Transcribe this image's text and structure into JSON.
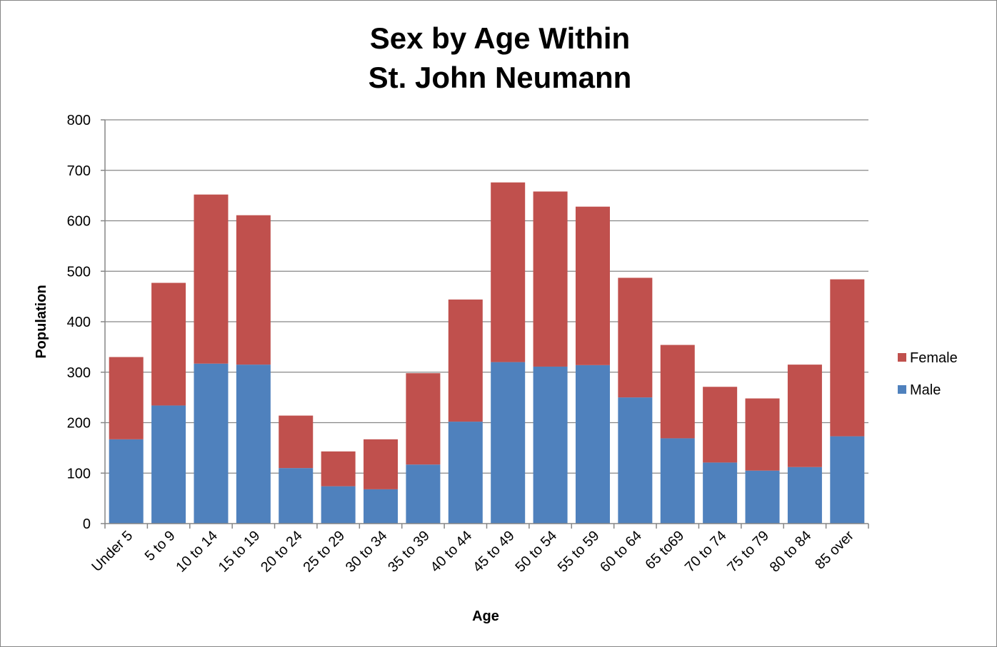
{
  "chart_data": {
    "type": "bar",
    "stacked": true,
    "title_lines": [
      "Sex by Age Within",
      "St. John Neumann"
    ],
    "xlabel": "Age",
    "ylabel": "Population",
    "ylim": [
      0,
      800
    ],
    "yticks": [
      0,
      100,
      200,
      300,
      400,
      500,
      600,
      700,
      800
    ],
    "grid": true,
    "legend_position": "right",
    "categories": [
      "Under 5",
      "5 to 9",
      "10 to 14",
      "15 to 19",
      "20 to 24",
      "25 to 29",
      "30 to 34",
      "35 to 39",
      "40 to 44",
      "45 to 49",
      "50 to 54",
      "55 to 59",
      "60 to 64",
      "65 to69",
      "70 to 74",
      "75 to 79",
      "80 to 84",
      "85 over"
    ],
    "series": [
      {
        "name": "Male",
        "color": "#4F81BD",
        "values": [
          167,
          234,
          317,
          315,
          110,
          74,
          68,
          117,
          202,
          320,
          311,
          314,
          250,
          169,
          121,
          105,
          112,
          173
        ]
      },
      {
        "name": "Female",
        "color": "#C0504D",
        "values": [
          163,
          243,
          335,
          296,
          104,
          69,
          99,
          181,
          242,
          356,
          347,
          314,
          237,
          185,
          150,
          143,
          203,
          311
        ]
      }
    ],
    "legend_order": [
      "Female",
      "Male"
    ]
  }
}
